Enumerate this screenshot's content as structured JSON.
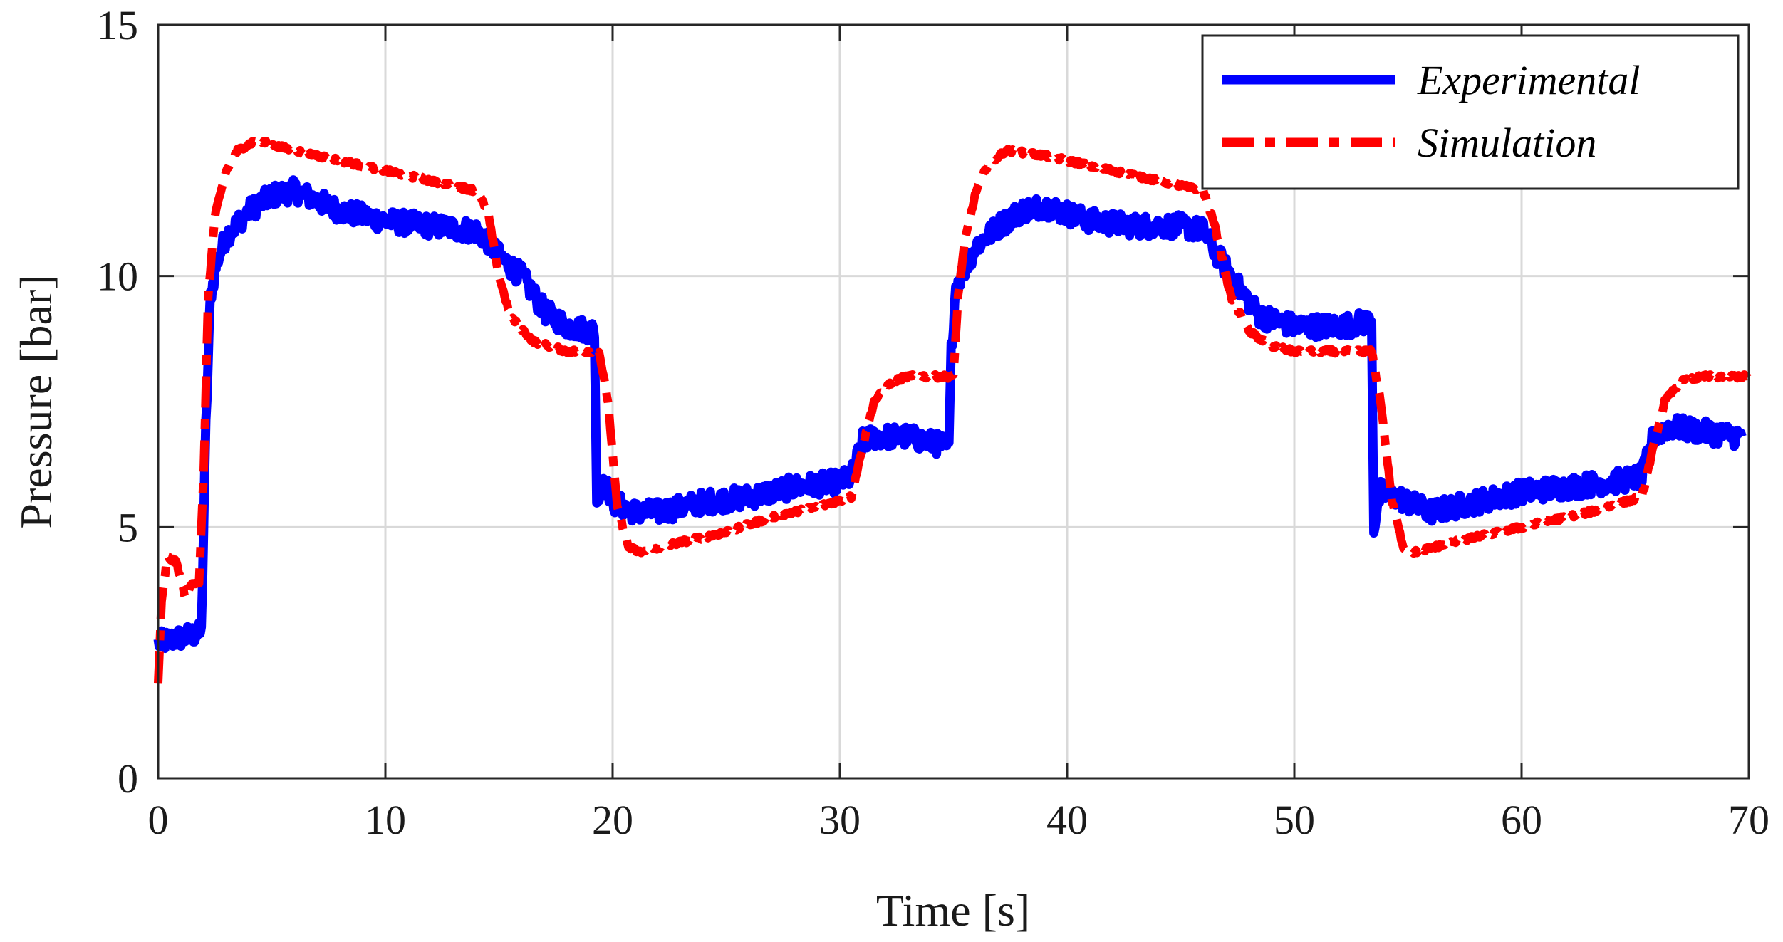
{
  "chart_data": {
    "type": "line",
    "title": "",
    "xlabel": "Time [s]",
    "ylabel": "Pressure [bar]",
    "xlim": [
      0,
      70
    ],
    "ylim": [
      0,
      15
    ],
    "xticks": [
      0,
      10,
      20,
      30,
      40,
      50,
      60,
      70
    ],
    "yticks": [
      0,
      5,
      10,
      15
    ],
    "xtick_labels": [
      "0",
      "10",
      "20",
      "30",
      "40",
      "50",
      "60",
      "70"
    ],
    "ytick_labels": [
      "0",
      "5",
      "10",
      "15"
    ],
    "grid": true,
    "legend_position": "top-right",
    "series": [
      {
        "name": "Experimental",
        "color": "#0000ff",
        "style": "solid",
        "noise": 0.22,
        "points": [
          [
            0,
            2.7
          ],
          [
            1.0,
            2.8
          ],
          [
            1.9,
            2.9
          ],
          [
            2.1,
            7.0
          ],
          [
            2.3,
            9.6
          ],
          [
            2.6,
            10.3
          ],
          [
            3.0,
            10.8
          ],
          [
            4.0,
            11.3
          ],
          [
            5.0,
            11.6
          ],
          [
            6.0,
            11.7
          ],
          [
            7.0,
            11.5
          ],
          [
            8.0,
            11.3
          ],
          [
            10.0,
            11.1
          ],
          [
            12.0,
            11.0
          ],
          [
            14.0,
            10.9
          ],
          [
            14.5,
            10.7
          ],
          [
            15.0,
            10.4
          ],
          [
            16.0,
            10.0
          ],
          [
            17.0,
            9.3
          ],
          [
            18.0,
            9.0
          ],
          [
            19.2,
            8.9
          ],
          [
            19.3,
            5.6
          ],
          [
            19.6,
            6.0
          ],
          [
            20.0,
            5.5
          ],
          [
            21.0,
            5.3
          ],
          [
            22.0,
            5.3
          ],
          [
            24.0,
            5.5
          ],
          [
            26.0,
            5.6
          ],
          [
            28.0,
            5.8
          ],
          [
            30.0,
            5.9
          ],
          [
            30.5,
            6.0
          ],
          [
            31.0,
            6.7
          ],
          [
            31.5,
            6.8
          ],
          [
            33.0,
            6.8
          ],
          [
            34.8,
            6.6
          ],
          [
            34.9,
            8.5
          ],
          [
            35.1,
            9.8
          ],
          [
            36.0,
            10.6
          ],
          [
            37.0,
            11.0
          ],
          [
            38.0,
            11.3
          ],
          [
            39.0,
            11.4
          ],
          [
            41.0,
            11.1
          ],
          [
            43.0,
            11.0
          ],
          [
            45.0,
            11.0
          ],
          [
            46.0,
            10.9
          ],
          [
            46.5,
            10.5
          ],
          [
            47.5,
            9.8
          ],
          [
            48.5,
            9.2
          ],
          [
            50.0,
            9.0
          ],
          [
            52.0,
            9.0
          ],
          [
            53.4,
            9.1
          ],
          [
            53.5,
            5.0
          ],
          [
            53.8,
            5.7
          ],
          [
            54.5,
            5.6
          ],
          [
            56.0,
            5.3
          ],
          [
            58.0,
            5.5
          ],
          [
            60.0,
            5.7
          ],
          [
            62.0,
            5.8
          ],
          [
            64.0,
            5.9
          ],
          [
            65.3,
            6.0
          ],
          [
            65.8,
            6.8
          ],
          [
            66.5,
            7.0
          ],
          [
            68.0,
            6.9
          ],
          [
            69.7,
            6.8
          ]
        ]
      },
      {
        "name": "Simulation",
        "color": "#ff0000",
        "style": "dashdot",
        "noise": 0.04,
        "points": [
          [
            0,
            1.9
          ],
          [
            0.15,
            3.5
          ],
          [
            0.4,
            4.4
          ],
          [
            0.8,
            4.3
          ],
          [
            1.2,
            3.6
          ],
          [
            1.5,
            3.9
          ],
          [
            1.8,
            3.9
          ],
          [
            2.0,
            6.0
          ],
          [
            2.2,
            9.6
          ],
          [
            2.5,
            11.2
          ],
          [
            3.0,
            12.1
          ],
          [
            3.5,
            12.5
          ],
          [
            4.3,
            12.7
          ],
          [
            6.0,
            12.5
          ],
          [
            8.0,
            12.3
          ],
          [
            10.0,
            12.1
          ],
          [
            12.0,
            11.9
          ],
          [
            14.0,
            11.7
          ],
          [
            14.5,
            11.3
          ],
          [
            15.0,
            10.0
          ],
          [
            15.5,
            9.2
          ],
          [
            16.5,
            8.7
          ],
          [
            18.0,
            8.5
          ],
          [
            19.4,
            8.5
          ],
          [
            19.8,
            7.5
          ],
          [
            20.2,
            5.4
          ],
          [
            20.7,
            4.6
          ],
          [
            21.2,
            4.5
          ],
          [
            23.0,
            4.7
          ],
          [
            25.0,
            4.9
          ],
          [
            27.0,
            5.2
          ],
          [
            29.0,
            5.4
          ],
          [
            30.5,
            5.6
          ],
          [
            31.0,
            6.6
          ],
          [
            31.5,
            7.5
          ],
          [
            32.3,
            7.9
          ],
          [
            33.0,
            8.0
          ],
          [
            35.0,
            8.0
          ],
          [
            35.2,
            9.6
          ],
          [
            35.5,
            10.7
          ],
          [
            36.0,
            11.7
          ],
          [
            36.5,
            12.2
          ],
          [
            37.3,
            12.5
          ],
          [
            39.0,
            12.4
          ],
          [
            41.0,
            12.2
          ],
          [
            43.0,
            12.0
          ],
          [
            45.0,
            11.8
          ],
          [
            46.0,
            11.7
          ],
          [
            46.5,
            11.0
          ],
          [
            47.2,
            9.6
          ],
          [
            48.0,
            8.9
          ],
          [
            49.0,
            8.6
          ],
          [
            50.0,
            8.5
          ],
          [
            53.4,
            8.5
          ],
          [
            53.8,
            7.5
          ],
          [
            54.3,
            5.5
          ],
          [
            54.8,
            4.6
          ],
          [
            55.3,
            4.5
          ],
          [
            57.0,
            4.7
          ],
          [
            60.0,
            5.0
          ],
          [
            63.0,
            5.3
          ],
          [
            65.3,
            5.6
          ],
          [
            65.8,
            6.6
          ],
          [
            66.3,
            7.5
          ],
          [
            67.0,
            7.9
          ],
          [
            68.0,
            8.0
          ],
          [
            70.0,
            8.0
          ]
        ]
      }
    ]
  }
}
